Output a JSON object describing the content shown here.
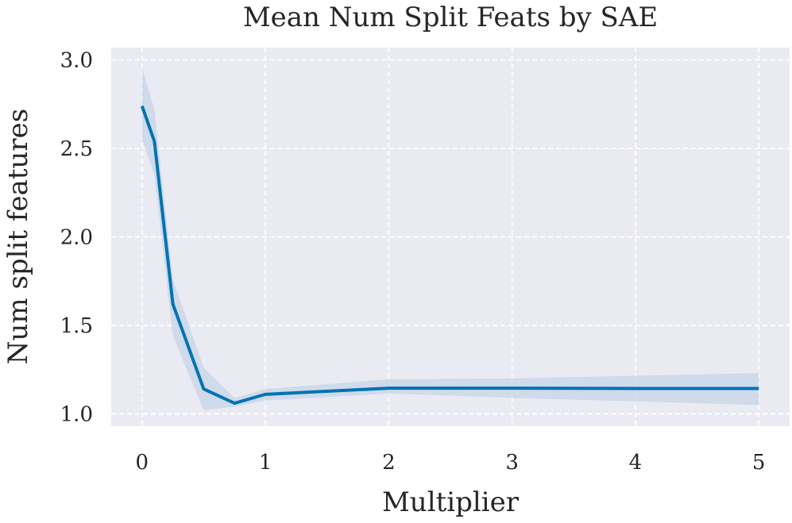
{
  "chart_data": {
    "type": "line",
    "title": "Mean Num Split Feats by SAE",
    "xlabel": "Multiplier",
    "ylabel": "Num split features",
    "xlim": [
      -0.25,
      5.25
    ],
    "ylim": [
      0.93,
      3.07
    ],
    "xticks": [
      0,
      1,
      2,
      3,
      4,
      5
    ],
    "xtick_labels": [
      "0",
      "1",
      "2",
      "3",
      "4",
      "5"
    ],
    "yticks": [
      1.0,
      1.5,
      2.0,
      2.5,
      3.0
    ],
    "ytick_labels": [
      "1.0",
      "1.5",
      "2.0",
      "2.5",
      "3.0"
    ],
    "grid": true,
    "grid_style": "dashed",
    "background_color": "#eaeaf2",
    "line_color": "#0173b2",
    "band_color": "#c5d4e8",
    "series": [
      {
        "x": [
          0,
          0.1,
          0.25,
          0.5,
          0.75,
          1,
          2,
          3,
          4,
          5
        ],
        "y": [
          2.74,
          2.54,
          1.62,
          1.14,
          1.06,
          1.11,
          1.145,
          1.145,
          1.143,
          1.143
        ],
        "lower": [
          2.55,
          2.35,
          1.44,
          1.02,
          1.04,
          1.075,
          1.115,
          1.09,
          1.07,
          1.05
        ],
        "upper": [
          2.96,
          2.72,
          1.76,
          1.26,
          1.09,
          1.14,
          1.195,
          1.2,
          1.215,
          1.23
        ]
      }
    ]
  }
}
